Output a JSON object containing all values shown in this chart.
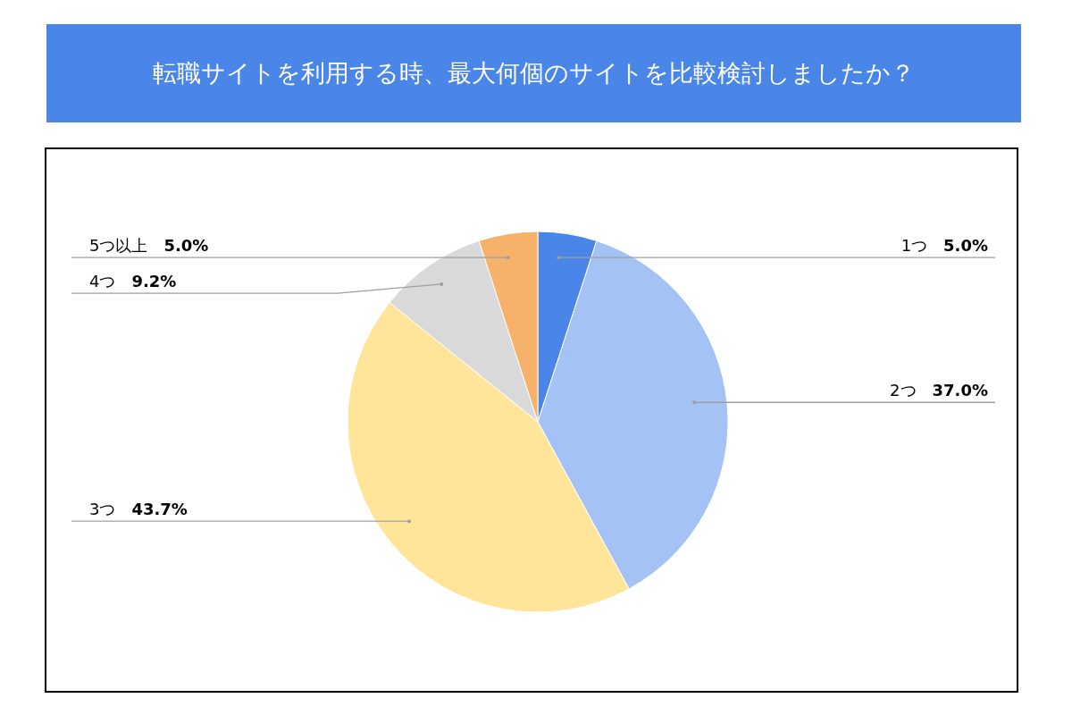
{
  "chart_data": {
    "type": "pie",
    "title": "転職サイトを利用する時、最大何個のサイトを比較検討しましたか？",
    "categories": [
      "1つ",
      "2つ",
      "3つ",
      "4つ",
      "5つ以上"
    ],
    "values": [
      5.0,
      37.0,
      43.7,
      9.2,
      5.0
    ],
    "value_labels": [
      "5.0%",
      "37.0%",
      "43.7%",
      "9.2%",
      "5.0%"
    ],
    "colors": [
      "#4a86e8",
      "#a4c2f4",
      "#ffe599",
      "#d9d9d9",
      "#f6b26b"
    ]
  }
}
